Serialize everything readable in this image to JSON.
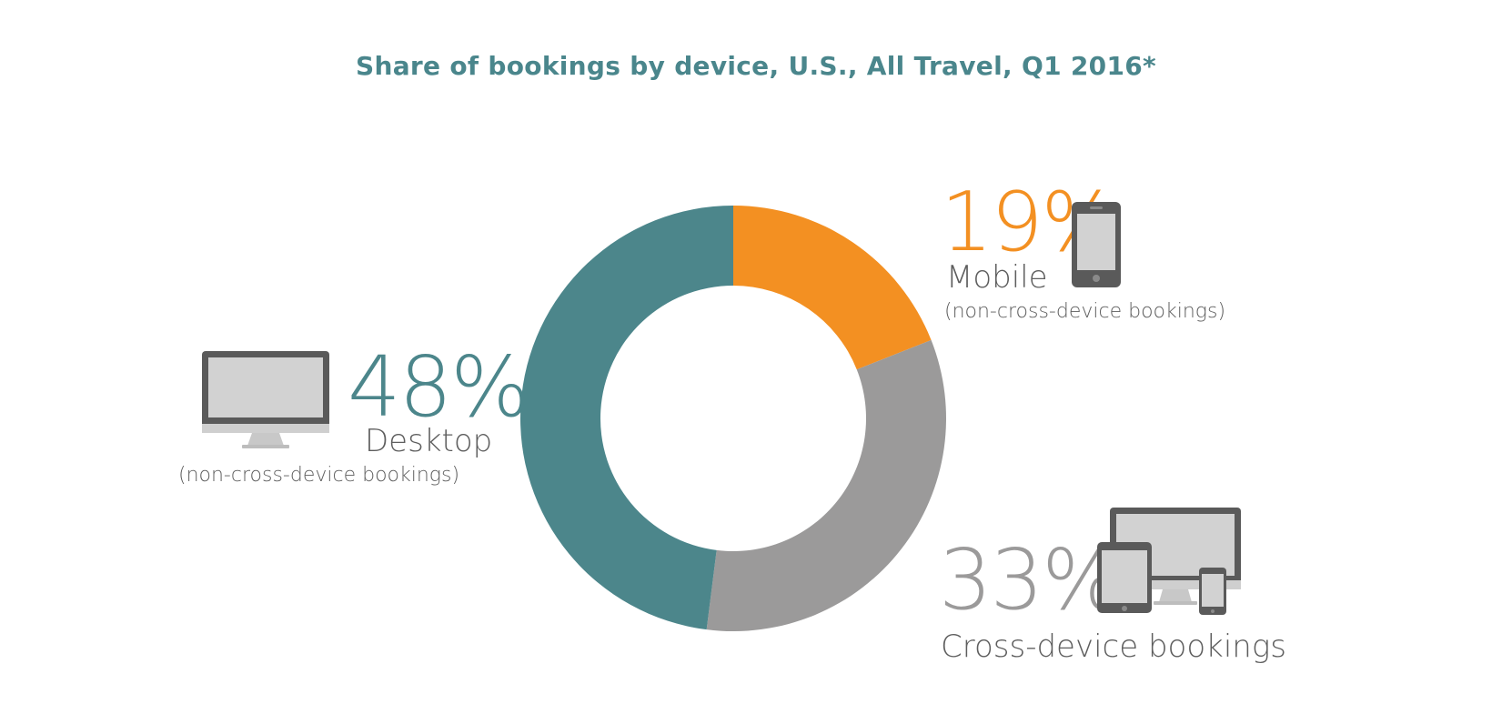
{
  "title": "Share of bookings by device, U.S., All Travel, Q1 2016*",
  "chart_data": {
    "type": "pie",
    "title": "Share of bookings by device, U.S., All Travel, Q1 2016*",
    "donut": true,
    "slices": [
      {
        "name": "Mobile",
        "value": 19,
        "value_label": "19%",
        "label": "Mobile",
        "sublabel": "(non-cross-device bookings)",
        "color": "#f39022",
        "icon": "smartphone-icon"
      },
      {
        "name": "Cross-device bookings",
        "value": 33,
        "value_label": "33%",
        "label": "Cross-device bookings",
        "sublabel": "",
        "color": "#9b9a9a",
        "icon": "multi-device-icon"
      },
      {
        "name": "Desktop",
        "value": 48,
        "value_label": "48%",
        "label": "Desktop",
        "sublabel": "(non-cross-device bookings)",
        "color": "#4c868b",
        "icon": "desktop-monitor-icon"
      }
    ]
  },
  "colors": {
    "title": "#4a868c",
    "mobile": "#f39022",
    "cross_device": "#9b9a9a",
    "desktop": "#4c868b",
    "label_text": "#5e5e5e",
    "icon_dark": "#5a5a5a",
    "icon_screen": "#d2d2d2"
  }
}
